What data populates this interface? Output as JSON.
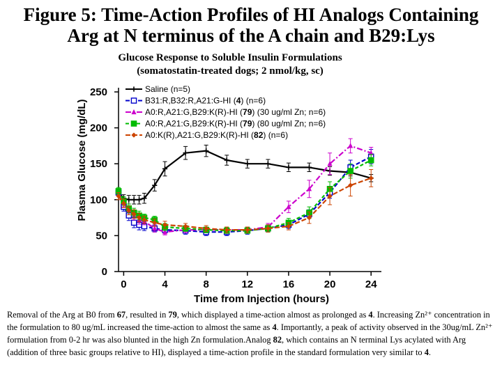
{
  "title_lines": [
    "Figure 5: Time-Action Profiles of HI Analogs Containing",
    "Arg at N terminus of the A chain and B29:Lys"
  ],
  "chart_data": {
    "type": "line",
    "title_lines": [
      "Glucose Response to Soluble Insulin Formulations",
      "(somatostatin-treated dogs; 2 nmol/kg, sc)"
    ],
    "xlabel": "Time from Injection (hours)",
    "ylabel": "Plasma Glucose (mg/dL)",
    "xlim": [
      -0.5,
      25
    ],
    "ylim": [
      0,
      250
    ],
    "xticks": [
      0,
      4,
      8,
      12,
      16,
      20,
      24
    ],
    "yticks": [
      0,
      50,
      100,
      150,
      200,
      250
    ],
    "grid": false,
    "legend_position": "top-left",
    "series": [
      {
        "name": "Saline (n=5)",
        "color": "#000000",
        "marker": "plus",
        "dash": "",
        "x": [
          -0.5,
          0,
          0.5,
          1,
          1.5,
          2,
          3,
          4,
          6,
          8,
          10,
          12,
          14,
          16,
          18,
          20,
          22,
          24
        ],
        "y": [
          110,
          102,
          100,
          100,
          100,
          102,
          120,
          143,
          165,
          168,
          155,
          150,
          150,
          145,
          145,
          140,
          138,
          130
        ],
        "err": [
          5,
          5,
          6,
          6,
          6,
          7,
          8,
          10,
          9,
          8,
          7,
          6,
          6,
          6,
          6,
          6,
          5,
          5
        ]
      },
      {
        "name": "B31:R,B32:R,A21:G-HI (4) (n=6)",
        "color": "#0000cc",
        "marker": "square",
        "dash": "6,3",
        "x": [
          -0.5,
          0,
          0.5,
          1,
          1.5,
          2,
          3,
          4,
          6,
          8,
          10,
          12,
          14,
          16,
          18,
          20,
          22,
          24
        ],
        "y": [
          110,
          90,
          78,
          68,
          65,
          63,
          60,
          58,
          57,
          55,
          55,
          57,
          60,
          65,
          80,
          110,
          145,
          160
        ],
        "err": [
          5,
          6,
          7,
          7,
          7,
          6,
          5,
          5,
          5,
          5,
          5,
          5,
          5,
          5,
          6,
          8,
          10,
          10
        ]
      },
      {
        "name": "A0:R,A21:G,B29:K(R)-HI (79) (30 ug/ml Zn; n=6)",
        "color": "#cc00cc",
        "marker": "triangle",
        "dash": "8,3,2,3",
        "x": [
          -0.5,
          0,
          0.5,
          1,
          1.5,
          2,
          3,
          4,
          6,
          8,
          10,
          12,
          14,
          16,
          18,
          20,
          22,
          24
        ],
        "y": [
          110,
          95,
          85,
          78,
          72,
          70,
          60,
          55,
          58,
          58,
          58,
          58,
          62,
          90,
          115,
          150,
          175,
          165
        ],
        "err": [
          5,
          5,
          6,
          6,
          6,
          5,
          5,
          4,
          4,
          4,
          4,
          4,
          5,
          8,
          12,
          15,
          10,
          8
        ]
      },
      {
        "name": "A0:R,A21:G,B29:K(R)-HI (79) (80 ug/ml Zn; n=6)",
        "color": "#00bb00",
        "marker": "square",
        "dash": "5,3",
        "x": [
          -0.5,
          0,
          0.5,
          1,
          1.5,
          2,
          3,
          4,
          6,
          8,
          10,
          12,
          14,
          16,
          18,
          20,
          22,
          24
        ],
        "y": [
          112,
          98,
          88,
          82,
          78,
          75,
          72,
          62,
          60,
          58,
          57,
          57,
          60,
          68,
          82,
          115,
          140,
          155
        ],
        "err": [
          5,
          6,
          6,
          6,
          6,
          5,
          5,
          5,
          4,
          4,
          4,
          4,
          5,
          6,
          8,
          10,
          10,
          8
        ]
      },
      {
        "name": "A0:K(R),A21:G,B29:K(R)-HI (82) (n=6)",
        "color": "#cc4400",
        "marker": "diamond",
        "dash": "7,3",
        "x": [
          -0.5,
          0,
          0.5,
          1,
          1.5,
          2,
          3,
          4,
          6,
          8,
          10,
          12,
          14,
          16,
          18,
          20,
          22,
          24
        ],
        "y": [
          105,
          95,
          85,
          80,
          75,
          72,
          68,
          65,
          63,
          60,
          58,
          58,
          60,
          63,
          75,
          105,
          120,
          130
        ],
        "err": [
          5,
          6,
          6,
          6,
          6,
          5,
          5,
          5,
          4,
          4,
          4,
          4,
          5,
          5,
          8,
          12,
          15,
          12
        ]
      }
    ],
    "legend_labels": [
      [
        {
          "t": "Saline (n=5)"
        }
      ],
      [
        {
          "t": "B31:R,B32:R,A21:G-HI ("
        },
        {
          "t": "4",
          "b": true
        },
        {
          "t": ") (n=6)"
        }
      ],
      [
        {
          "t": "A0:R,A21:G,B29:K(R)-HI ("
        },
        {
          "t": "79",
          "b": true
        },
        {
          "t": ") (30 ug/ml Zn; n=6)"
        }
      ],
      [
        {
          "t": "A0:R,A21:G,B29:K(R)-HI ("
        },
        {
          "t": "79",
          "b": true
        },
        {
          "t": ") (80 ug/ml Zn; n=6)"
        }
      ],
      [
        {
          "t": "A0:K(R),A21:G,B29:K(R)-HI ("
        },
        {
          "t": "82",
          "b": true
        },
        {
          "t": ") (n=6)"
        }
      ]
    ]
  },
  "caption": [
    {
      "t": "Removal of the Arg at B0 from  "
    },
    {
      "t": "67",
      "b": true
    },
    {
      "t": ", resulted in "
    },
    {
      "t": "79",
      "b": true
    },
    {
      "t": ", which displayed a time-action almost as prolonged as "
    },
    {
      "t": "4",
      "b": true
    },
    {
      "t": ".  Increasing Zn²⁺ concentration in the formulation to 80 ug/mL increased the time-action to almost the same as "
    },
    {
      "t": "4",
      "b": true
    },
    {
      "t": ". Importantly, a  peak of activity observed in the 30ug/mL Zn²⁺ formulation from 0-2 hr was also blunted in the high Zn formulation.Analog "
    },
    {
      "t": "82",
      "b": true
    },
    {
      "t": ", which contains an N terminal Lys acylated with Arg (addition of three basic groups relative to HI), displayed a time-action profile in the standard formulation very similar to "
    },
    {
      "t": "4",
      "b": true
    },
    {
      "t": "."
    }
  ]
}
